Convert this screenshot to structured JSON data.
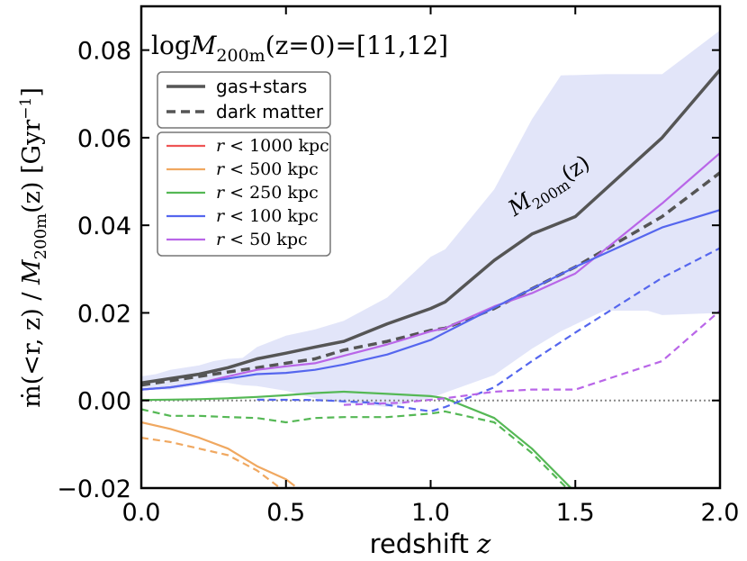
{
  "chart_data": {
    "type": "line",
    "title": "logM200m(z=0)=[11,12]",
    "title_parts": {
      "prefix": "log",
      "var": "M",
      "sub": "200m",
      "arg": "(z=0)=[11,12]"
    },
    "xlabel": "redshift",
    "xlabel_var": "z",
    "ylabel": "ṁ(<r, z) / M200m(z) [Gyr⁻¹]",
    "ylabel_parts": {
      "left": "ṁ(<r, z) / ",
      "var": "M",
      "sub": "200m",
      "arg": "(z)",
      "unit": "[Gyr",
      "exp": "−1",
      "unit_close": "]"
    },
    "xlim": [
      0.0,
      2.0
    ],
    "ylim": [
      -0.02,
      0.09
    ],
    "xticks": [
      0.0,
      0.5,
      1.0,
      1.5,
      2.0
    ],
    "xtick_labels": [
      "0.0",
      "0.5",
      "1.0",
      "1.5",
      "2.0"
    ],
    "yticks": [
      -0.02,
      0.0,
      0.02,
      0.04,
      0.06,
      0.08
    ],
    "ytick_labels": [
      "−0.02",
      "0.00",
      "0.02",
      "0.04",
      "0.06",
      "0.08"
    ],
    "grid": false,
    "legend_style": {
      "entries": [
        {
          "label": "gas+stars",
          "style": "solid",
          "color": "#555555"
        },
        {
          "label": "dark matter",
          "style": "dashed",
          "color": "#555555"
        }
      ]
    },
    "legend_radius": {
      "entries": [
        {
          "prefix": "r",
          "label": " < 1000 kpc",
          "color": "#ee5555"
        },
        {
          "prefix": "r",
          "label": " < 500 kpc",
          "color": "#f0a860"
        },
        {
          "prefix": "r",
          "label": " < 250 kpc",
          "color": "#55b855"
        },
        {
          "prefix": "r",
          "label": " < 100 kpc",
          "color": "#5566ee"
        },
        {
          "prefix": "r",
          "label": " < 50 kpc",
          "color": "#b966e8"
        }
      ]
    },
    "annotation": {
      "var": "Ṁ",
      "sub": "200m",
      "arg": "(z)",
      "x": 1.29,
      "y": 0.042,
      "angle_deg": -33
    },
    "zero_line": {
      "y": 0.0,
      "style": "dotted",
      "color": "#888888"
    },
    "band": {
      "color": "#dde0f8",
      "x": [
        0.0,
        0.05,
        0.1,
        0.15,
        0.2,
        0.25,
        0.3,
        0.35,
        0.4,
        0.5,
        0.6,
        0.7,
        0.85,
        1.0,
        1.05,
        1.22,
        1.35,
        1.45,
        1.6,
        1.75,
        1.8,
        2.0
      ],
      "upper": [
        0.0055,
        0.006,
        0.007,
        0.0075,
        0.008,
        0.009,
        0.0095,
        0.0097,
        0.0122,
        0.0148,
        0.0162,
        0.0182,
        0.0235,
        0.0328,
        0.0345,
        0.0482,
        0.0642,
        0.0742,
        0.0745,
        0.0745,
        0.0745,
        0.0845
      ],
      "lower": [
        0.0025,
        0.0025,
        0.0025,
        0.003,
        0.0035,
        0.004,
        0.004,
        0.0035,
        0.0033,
        0.0022,
        0.0005,
        -0.0005,
        -0.0015,
        0.0005,
        0.0018,
        0.0058,
        0.0118,
        0.0158,
        0.0205,
        0.0205,
        0.0195,
        0.02
      ]
    },
    "series": [
      {
        "name": "Ṁ200m(z) gas+stars",
        "color": "#555555",
        "style": "solid",
        "width": 3.5,
        "x": [
          0.0,
          0.1,
          0.2,
          0.3,
          0.4,
          0.5,
          0.6,
          0.7,
          0.85,
          1.0,
          1.05,
          1.22,
          1.35,
          1.5,
          1.8,
          2.0
        ],
        "y": [
          0.004,
          0.005,
          0.006,
          0.0075,
          0.0095,
          0.0108,
          0.0122,
          0.0135,
          0.0175,
          0.021,
          0.0225,
          0.032,
          0.038,
          0.042,
          0.06,
          0.0755
        ]
      },
      {
        "name": "dark matter",
        "color": "#555555",
        "style": "dashed",
        "width": 3.5,
        "x": [
          0.0,
          0.1,
          0.2,
          0.3,
          0.4,
          0.5,
          0.6,
          0.7,
          0.85,
          1.0,
          1.05,
          1.22,
          1.35,
          1.5,
          1.8,
          2.0
        ],
        "y": [
          0.0035,
          0.0045,
          0.0055,
          0.0065,
          0.0075,
          0.0085,
          0.0095,
          0.0115,
          0.0135,
          0.016,
          0.0165,
          0.021,
          0.0255,
          0.0305,
          0.042,
          0.052
        ]
      },
      {
        "name": "r < 50 kpc gas+stars",
        "color": "#b966e8",
        "style": "solid",
        "width": 2.2,
        "x": [
          0.0,
          0.1,
          0.2,
          0.3,
          0.4,
          0.5,
          0.6,
          0.7,
          0.85,
          1.0,
          1.05,
          1.22,
          1.35,
          1.5,
          1.8,
          2.0
        ],
        "y": [
          0.0025,
          0.003,
          0.004,
          0.0055,
          0.007,
          0.0078,
          0.0085,
          0.0102,
          0.0128,
          0.0158,
          0.0165,
          0.0215,
          0.0245,
          0.029,
          0.045,
          0.0565
        ]
      },
      {
        "name": "r < 100 kpc gas+stars",
        "color": "#5566ee",
        "style": "solid",
        "width": 2.2,
        "x": [
          0.0,
          0.1,
          0.2,
          0.3,
          0.4,
          0.5,
          0.6,
          0.7,
          0.85,
          1.0,
          1.05,
          1.22,
          1.35,
          1.5,
          1.8,
          2.0
        ],
        "y": [
          0.0025,
          0.003,
          0.004,
          0.005,
          0.006,
          0.0063,
          0.007,
          0.0082,
          0.0105,
          0.0138,
          0.0155,
          0.0212,
          0.0255,
          0.0305,
          0.0395,
          0.0435
        ]
      },
      {
        "name": "r < 250 kpc gas+stars",
        "color": "#55b855",
        "style": "solid",
        "width": 2.2,
        "x": [
          0.0,
          0.1,
          0.2,
          0.3,
          0.4,
          0.5,
          0.6,
          0.7,
          0.85,
          1.0,
          1.05,
          1.22,
          1.35,
          1.5
        ],
        "y": [
          0.0001,
          0.0002,
          0.0003,
          0.0005,
          0.0008,
          0.0012,
          0.0017,
          0.002,
          0.0015,
          0.001,
          0.0005,
          -0.004,
          -0.011,
          -0.021
        ]
      },
      {
        "name": "r < 250 kpc dark matter",
        "color": "#55b855",
        "style": "dashed",
        "width": 2.2,
        "x": [
          0.0,
          0.1,
          0.2,
          0.3,
          0.4,
          0.5,
          0.6,
          0.7,
          0.85,
          1.0,
          1.05,
          1.22,
          1.35,
          1.5
        ],
        "y": [
          -0.002,
          -0.0035,
          -0.0035,
          -0.0038,
          -0.004,
          -0.005,
          -0.004,
          -0.0038,
          -0.0038,
          -0.003,
          -0.0025,
          -0.005,
          -0.012,
          -0.022
        ]
      },
      {
        "name": "r < 500 kpc gas+stars",
        "color": "#f0a860",
        "style": "solid",
        "width": 2.2,
        "x": [
          0.0,
          0.1,
          0.2,
          0.3,
          0.4,
          0.5,
          0.53
        ],
        "y": [
          -0.005,
          -0.0065,
          -0.0085,
          -0.011,
          -0.015,
          -0.018,
          -0.0195
        ]
      },
      {
        "name": "r < 500 kpc dark matter",
        "color": "#f0a860",
        "style": "dashed",
        "width": 2.2,
        "x": [
          0.0,
          0.1,
          0.2,
          0.3,
          0.4,
          0.48
        ],
        "y": [
          -0.0085,
          -0.0095,
          -0.011,
          -0.0125,
          -0.016,
          -0.02
        ]
      },
      {
        "name": "r < 100 kpc dark matter",
        "color": "#5566ee",
        "style": "dashed",
        "width": 2.2,
        "x": [
          0.4,
          0.6,
          0.8,
          1.0,
          1.05,
          1.22,
          1.35,
          1.5,
          1.8,
          2.0
        ],
        "y": [
          0.0002,
          0.0001,
          -0.0005,
          -0.0025,
          -0.0015,
          0.003,
          0.009,
          0.0155,
          0.028,
          0.0348
        ]
      },
      {
        "name": "r < 50 kpc dark matter",
        "color": "#b966e8",
        "style": "dashed",
        "width": 2.2,
        "x": [
          0.7,
          0.9,
          1.05,
          1.22,
          1.35,
          1.5,
          1.8,
          2.0
        ],
        "y": [
          -0.001,
          -0.0005,
          0.0005,
          0.002,
          0.0025,
          0.0025,
          0.009,
          0.0205
        ]
      }
    ]
  }
}
